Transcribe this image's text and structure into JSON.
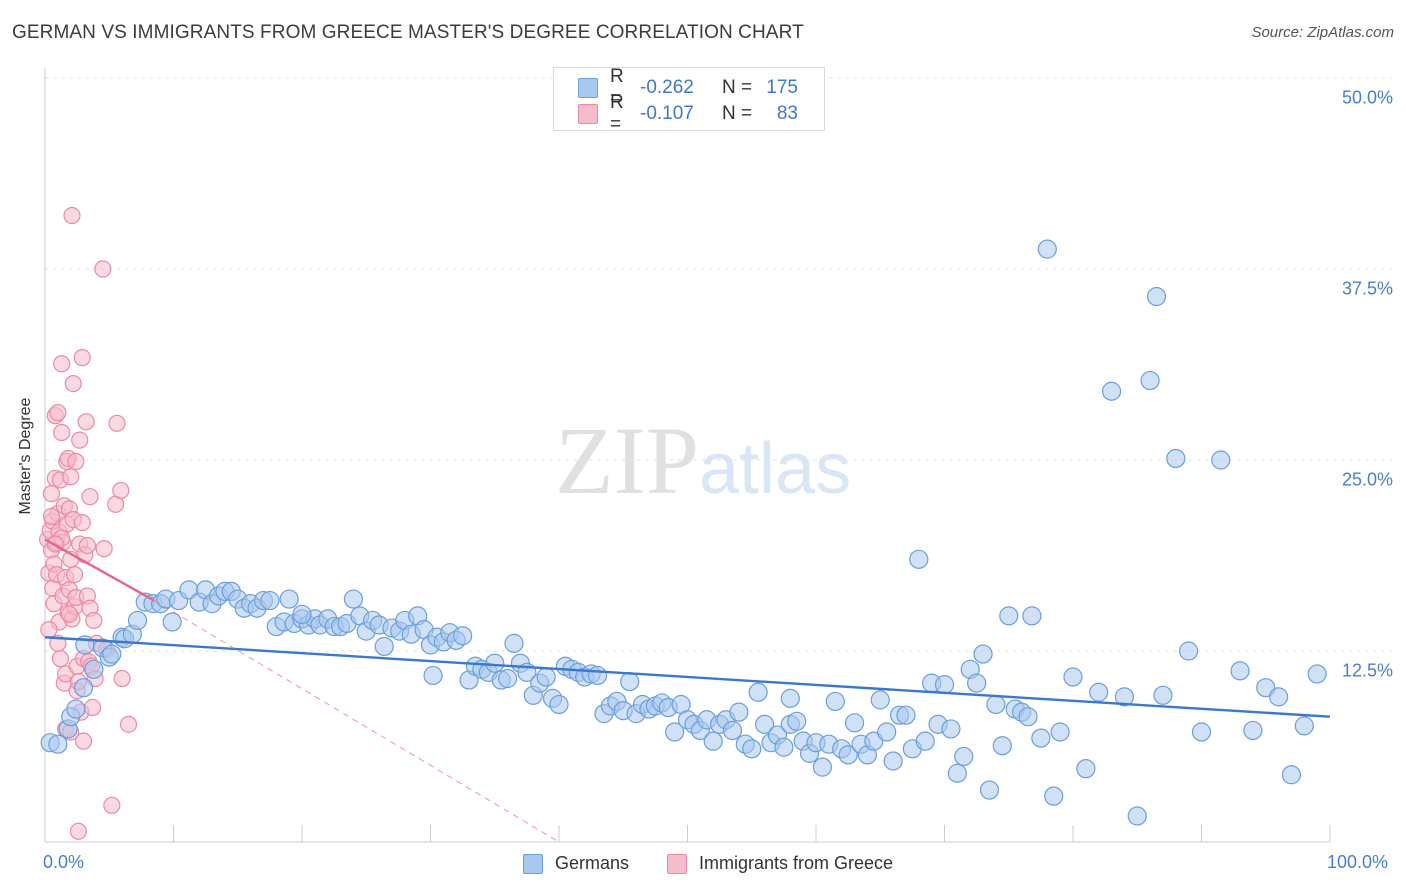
{
  "header": {
    "title": "GERMAN VS IMMIGRANTS FROM GREECE MASTER'S DEGREE CORRELATION CHART",
    "source": "Source: ZipAtlas.com"
  },
  "watermark": {
    "zip": "ZIP",
    "atlas": "atlas"
  },
  "legend": {
    "rows": [
      {
        "r_label": "R =",
        "r_value": "-0.262",
        "n_label": "N =",
        "n_value": "175"
      },
      {
        "r_label": "R =",
        "r_value": "-0.107",
        "n_label": "N =",
        "n_value": "83"
      }
    ]
  },
  "bottom_legend": {
    "series1": "Germans",
    "series2": "Immigrants from Greece"
  },
  "colors": {
    "germans_fill": "#a9c8ef",
    "germans_stroke": "#6a9ede",
    "germans_line": "#3a78cc",
    "greece_fill": "#f5bccb",
    "greece_stroke": "#ec8aa6",
    "greece_line": "#e8648c",
    "grid": "#e3e3e3",
    "tick_text": "#4a7fcb"
  },
  "chart_data": {
    "type": "scatter",
    "title": "GERMAN VS IMMIGRANTS FROM GREECE MASTER'S DEGREE CORRELATION CHART",
    "xlabel": "",
    "ylabel": "Master's Degree",
    "xlim": [
      0,
      100
    ],
    "ylim": [
      0,
      50
    ],
    "x_tick_labels": [
      "0.0%",
      "100.0%"
    ],
    "y_ticks": [
      12.5,
      25.0,
      37.5,
      50.0
    ],
    "y_tick_labels": [
      "12.5%",
      "25.0%",
      "37.5%",
      "50.0%"
    ],
    "grid": true,
    "series": [
      {
        "name": "Germans",
        "R": -0.262,
        "N": 175,
        "trend": {
          "x": [
            0,
            100
          ],
          "y": [
            13.4,
            8.2
          ]
        },
        "points": [
          [
            0.4,
            6.5
          ],
          [
            1.0,
            6.4
          ],
          [
            1.8,
            7.4
          ],
          [
            2.0,
            8.2
          ],
          [
            2.4,
            8.7
          ],
          [
            3.0,
            10.1
          ],
          [
            3.1,
            12.9
          ],
          [
            3.8,
            11.3
          ],
          [
            4.5,
            12.7
          ],
          [
            5.0,
            12.1
          ],
          [
            5.2,
            12.3
          ],
          [
            6.0,
            13.4
          ],
          [
            6.2,
            13.3
          ],
          [
            6.8,
            13.6
          ],
          [
            7.2,
            14.5
          ],
          [
            7.8,
            15.7
          ],
          [
            8.4,
            15.6
          ],
          [
            9.0,
            15.6
          ],
          [
            9.4,
            15.9
          ],
          [
            9.9,
            14.4
          ],
          [
            10.4,
            15.8
          ],
          [
            11.2,
            16.5
          ],
          [
            12.0,
            15.7
          ],
          [
            12.5,
            16.5
          ],
          [
            13.0,
            15.6
          ],
          [
            13.5,
            16.1
          ],
          [
            14.0,
            16.4
          ],
          [
            14.5,
            16.4
          ],
          [
            15.0,
            15.9
          ],
          [
            15.5,
            15.3
          ],
          [
            16.0,
            15.6
          ],
          [
            16.5,
            15.3
          ],
          [
            17.0,
            15.8
          ],
          [
            17.5,
            15.8
          ],
          [
            18.0,
            14.1
          ],
          [
            18.6,
            14.4
          ],
          [
            19.0,
            15.9
          ],
          [
            19.4,
            14.3
          ],
          [
            20.0,
            14.6
          ],
          [
            20.5,
            14.2
          ],
          [
            21.0,
            14.6
          ],
          [
            21.4,
            14.2
          ],
          [
            22.0,
            14.6
          ],
          [
            22.5,
            14.1
          ],
          [
            23.0,
            14.1
          ],
          [
            23.5,
            14.3
          ],
          [
            24.0,
            15.9
          ],
          [
            24.5,
            14.8
          ],
          [
            25.0,
            13.8
          ],
          [
            25.5,
            14.5
          ],
          [
            26.0,
            14.2
          ],
          [
            26.4,
            12.8
          ],
          [
            27.0,
            14.0
          ],
          [
            27.6,
            13.8
          ],
          [
            28.0,
            14.5
          ],
          [
            28.5,
            13.6
          ],
          [
            29.0,
            14.8
          ],
          [
            29.5,
            13.9
          ],
          [
            30.0,
            12.9
          ],
          [
            30.5,
            13.4
          ],
          [
            31.0,
            13.1
          ],
          [
            31.5,
            13.7
          ],
          [
            32.0,
            13.2
          ],
          [
            32.5,
            13.5
          ],
          [
            33.0,
            10.6
          ],
          [
            33.5,
            11.5
          ],
          [
            34.0,
            11.3
          ],
          [
            34.5,
            11.1
          ],
          [
            35.0,
            11.7
          ],
          [
            35.5,
            10.6
          ],
          [
            36.0,
            10.7
          ],
          [
            36.5,
            13.0
          ],
          [
            37.0,
            11.7
          ],
          [
            37.5,
            11.1
          ],
          [
            38.0,
            9.6
          ],
          [
            38.5,
            10.4
          ],
          [
            39.0,
            10.8
          ],
          [
            39.5,
            9.4
          ],
          [
            40.0,
            9.0
          ],
          [
            40.5,
            11.5
          ],
          [
            41.0,
            11.3
          ],
          [
            41.5,
            11.1
          ],
          [
            42.0,
            10.8
          ],
          [
            42.5,
            11.0
          ],
          [
            43.0,
            10.9
          ],
          [
            43.5,
            8.4
          ],
          [
            44.0,
            8.9
          ],
          [
            44.5,
            9.2
          ],
          [
            45.0,
            8.6
          ],
          [
            45.5,
            10.5
          ],
          [
            46.0,
            8.4
          ],
          [
            46.5,
            9.0
          ],
          [
            47.0,
            8.7
          ],
          [
            47.5,
            8.9
          ],
          [
            48.0,
            9.1
          ],
          [
            48.5,
            8.8
          ],
          [
            49.0,
            7.2
          ],
          [
            49.5,
            9.0
          ],
          [
            50.0,
            8.0
          ],
          [
            50.5,
            7.7
          ],
          [
            51.0,
            7.3
          ],
          [
            51.5,
            8.0
          ],
          [
            52.0,
            6.6
          ],
          [
            52.5,
            7.7
          ],
          [
            53.0,
            8.0
          ],
          [
            53.5,
            7.3
          ],
          [
            54.0,
            8.5
          ],
          [
            54.5,
            6.4
          ],
          [
            55.0,
            6.1
          ],
          [
            55.5,
            9.8
          ],
          [
            56.0,
            7.7
          ],
          [
            56.5,
            6.5
          ],
          [
            57.0,
            7.0
          ],
          [
            57.5,
            6.2
          ],
          [
            58.0,
            7.7
          ],
          [
            58.5,
            7.9
          ],
          [
            59.0,
            6.6
          ],
          [
            59.5,
            5.8
          ],
          [
            60.0,
            6.5
          ],
          [
            60.5,
            4.9
          ],
          [
            61.0,
            6.4
          ],
          [
            61.5,
            9.2
          ],
          [
            62.0,
            6.1
          ],
          [
            62.5,
            5.7
          ],
          [
            63.0,
            7.8
          ],
          [
            63.5,
            6.4
          ],
          [
            64.0,
            5.7
          ],
          [
            64.5,
            6.6
          ],
          [
            65.0,
            9.3
          ],
          [
            65.5,
            7.2
          ],
          [
            66.0,
            5.3
          ],
          [
            66.5,
            8.3
          ],
          [
            67.0,
            8.3
          ],
          [
            67.5,
            6.1
          ],
          [
            68.0,
            18.5
          ],
          [
            68.5,
            6.6
          ],
          [
            69.0,
            10.4
          ],
          [
            69.5,
            7.7
          ],
          [
            70.0,
            10.3
          ],
          [
            70.5,
            7.4
          ],
          [
            71.0,
            4.5
          ],
          [
            71.5,
            5.6
          ],
          [
            72.0,
            11.3
          ],
          [
            72.5,
            10.4
          ],
          [
            73.0,
            12.3
          ],
          [
            73.5,
            3.4
          ],
          [
            74.0,
            9.0
          ],
          [
            74.5,
            6.3
          ],
          [
            75.0,
            14.8
          ],
          [
            75.5,
            8.7
          ],
          [
            76.0,
            8.5
          ],
          [
            76.5,
            8.2
          ],
          [
            76.8,
            14.8
          ],
          [
            77.5,
            6.8
          ],
          [
            78.0,
            38.8
          ],
          [
            78.5,
            3.0
          ],
          [
            79.0,
            7.2
          ],
          [
            80.0,
            10.8
          ],
          [
            81.0,
            4.8
          ],
          [
            82.0,
            9.8
          ],
          [
            83.0,
            29.5
          ],
          [
            84.0,
            9.5
          ],
          [
            85.0,
            1.7
          ],
          [
            86.0,
            30.2
          ],
          [
            86.5,
            35.7
          ],
          [
            87.0,
            9.6
          ],
          [
            88.0,
            25.1
          ],
          [
            89.0,
            12.5
          ],
          [
            90.0,
            7.2
          ],
          [
            91.5,
            25.0
          ],
          [
            93.0,
            11.2
          ],
          [
            94.0,
            7.3
          ],
          [
            95.0,
            10.1
          ],
          [
            96.0,
            9.5
          ],
          [
            97.0,
            4.4
          ],
          [
            98.0,
            7.6
          ],
          [
            99.0,
            11.0
          ],
          [
            30.2,
            10.9
          ],
          [
            58.0,
            9.4
          ],
          [
            20.0,
            14.9
          ]
        ]
      },
      {
        "name": "Immigrants from Greece",
        "R": -0.107,
        "N": 83,
        "trend": {
          "x": [
            0,
            8.5
          ],
          "y": [
            19.8,
            15.8
          ]
        },
        "trend_extended": {
          "x": [
            8.5,
            40
          ],
          "y": [
            15.8,
            0
          ]
        },
        "points": [
          [
            0.2,
            19.8
          ],
          [
            0.3,
            17.6
          ],
          [
            0.4,
            20.4
          ],
          [
            0.5,
            19.1
          ],
          [
            0.5,
            22.8
          ],
          [
            0.6,
            16.6
          ],
          [
            0.6,
            21.0
          ],
          [
            0.7,
            18.2
          ],
          [
            0.7,
            15.6
          ],
          [
            0.8,
            27.9
          ],
          [
            0.8,
            23.8
          ],
          [
            0.9,
            19.6
          ],
          [
            0.9,
            17.5
          ],
          [
            1.0,
            28.1
          ],
          [
            1.0,
            21.5
          ],
          [
            1.1,
            20.3
          ],
          [
            1.1,
            14.4
          ],
          [
            1.2,
            23.7
          ],
          [
            1.2,
            12.0
          ],
          [
            1.3,
            26.8
          ],
          [
            1.3,
            31.3
          ],
          [
            1.4,
            19.6
          ],
          [
            1.4,
            16.1
          ],
          [
            1.5,
            22.0
          ],
          [
            1.5,
            10.4
          ],
          [
            1.6,
            11.0
          ],
          [
            1.6,
            17.3
          ],
          [
            1.7,
            24.9
          ],
          [
            1.7,
            20.8
          ],
          [
            1.8,
            15.0
          ],
          [
            1.8,
            25.1
          ],
          [
            1.9,
            16.5
          ],
          [
            1.9,
            21.8
          ],
          [
            2.0,
            23.9
          ],
          [
            2.0,
            18.5
          ],
          [
            2.1,
            41.0
          ],
          [
            2.1,
            14.6
          ],
          [
            2.2,
            30.0
          ],
          [
            2.2,
            21.1
          ],
          [
            2.3,
            15.4
          ],
          [
            2.3,
            17.5
          ],
          [
            2.4,
            24.9
          ],
          [
            2.4,
            16.0
          ],
          [
            2.5,
            11.5
          ],
          [
            2.5,
            9.9
          ],
          [
            2.6,
            0.7
          ],
          [
            2.7,
            26.3
          ],
          [
            2.7,
            19.5
          ],
          [
            2.8,
            8.5
          ],
          [
            2.9,
            31.7
          ],
          [
            3.0,
            12.0
          ],
          [
            3.0,
            6.6
          ],
          [
            3.1,
            18.8
          ],
          [
            3.2,
            27.5
          ],
          [
            3.3,
            16.1
          ],
          [
            3.4,
            11.8
          ],
          [
            3.5,
            15.3
          ],
          [
            3.5,
            22.6
          ],
          [
            3.6,
            11.5
          ],
          [
            3.7,
            8.8
          ],
          [
            3.8,
            14.5
          ],
          [
            3.9,
            10.7
          ],
          [
            4.0,
            13.0
          ],
          [
            4.5,
            37.5
          ],
          [
            4.6,
            19.2
          ],
          [
            4.8,
            12.6
          ],
          [
            5.2,
            2.4
          ],
          [
            5.5,
            22.1
          ],
          [
            5.6,
            27.4
          ],
          [
            5.9,
            23.0
          ],
          [
            6.0,
            10.7
          ],
          [
            6.5,
            7.7
          ],
          [
            0.3,
            13.9
          ],
          [
            1.0,
            13.0
          ],
          [
            1.6,
            7.4
          ],
          [
            2.0,
            7.2
          ],
          [
            1.3,
            19.9
          ],
          [
            2.6,
            10.5
          ],
          [
            0.5,
            21.3
          ],
          [
            3.3,
            19.4
          ],
          [
            1.9,
            14.9
          ],
          [
            0.8,
            19.5
          ],
          [
            2.9,
            20.9
          ]
        ]
      }
    ]
  }
}
